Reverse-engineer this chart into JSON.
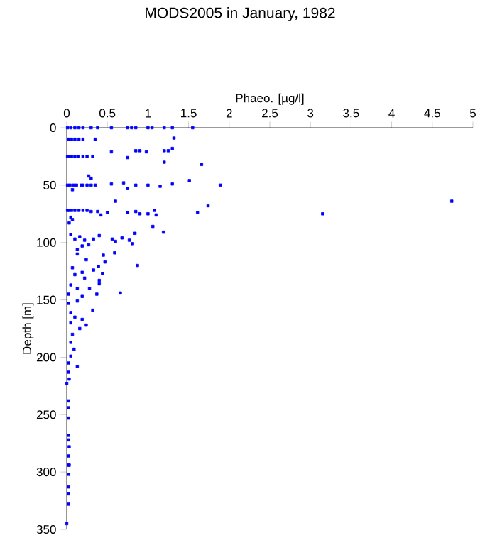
{
  "chart_data": {
    "type": "scatter",
    "title": "MODS2005 in January, 1982",
    "xlabel": "Phaeo. [µg/l]",
    "ylabel": "Depth [m]",
    "xlim": [
      0,
      5
    ],
    "xticks": [
      0,
      0.5,
      1,
      1.5,
      2,
      2.5,
      3,
      3.5,
      4,
      4.5,
      5
    ],
    "ylim": [
      350,
      0
    ],
    "yticks": [
      0,
      50,
      100,
      150,
      200,
      250,
      300,
      350
    ],
    "marker": "square",
    "series": [
      {
        "color": "#0000ff",
        "x": [
          0.01,
          0.05,
          0.1,
          0.15,
          0.2,
          0.3,
          0.38,
          0.55,
          0.75,
          0.8,
          0.85,
          1.0,
          1.05,
          1.2,
          1.3,
          1.55,
          0.02,
          0.06,
          0.1,
          0.15,
          0.2,
          0.35,
          1.32,
          0.55,
          0.85,
          0.9,
          0.98,
          1.2,
          1.25,
          1.3,
          0.01,
          0.03,
          0.06,
          0.1,
          0.14,
          0.2,
          0.25,
          0.32,
          0.75,
          1.2,
          1.66,
          0.27,
          0.3,
          0.01,
          0.04,
          0.08,
          0.12,
          0.18,
          0.2,
          0.25,
          0.3,
          0.35,
          0.55,
          0.7,
          0.75,
          0.85,
          1.0,
          1.15,
          1.3,
          1.51,
          1.89,
          0.07,
          0.6,
          4.74,
          0.01,
          0.03,
          0.06,
          0.1,
          0.15,
          0.2,
          0.25,
          0.3,
          0.38,
          0.42,
          0.5,
          0.75,
          0.85,
          0.9,
          1.0,
          1.08,
          1.1,
          1.61,
          1.74,
          3.15,
          0.05,
          0.03,
          0.07,
          0.4,
          0.56,
          0.84,
          1.06,
          1.19,
          0.6,
          0.68,
          0.77,
          0.81,
          0.05,
          0.1,
          0.16,
          0.22,
          0.27,
          0.33,
          0.13,
          0.19,
          0.13,
          0.24,
          0.39,
          0.47,
          0.45,
          0.59,
          0.87,
          0.07,
          0.1,
          0.19,
          0.33,
          0.44,
          0.22,
          0.4,
          0.4,
          0.05,
          0.13,
          0.28,
          0.66,
          0.37,
          0.02,
          0.19,
          0.02,
          0.13,
          0.32,
          0.05,
          0.1,
          0.19,
          0.24,
          0.16,
          0.05,
          0.07,
          0.05,
          0.09,
          0.05,
          0.13,
          0.02,
          0.02,
          0.03,
          0.0,
          0.02,
          0.02,
          0.02,
          0.02,
          0.02,
          0.03,
          0.02,
          0.02,
          0.03,
          0.02,
          0.02,
          0.02,
          0.02,
          0.0
        ],
        "values": [
          0,
          0,
          0,
          0,
          0,
          0,
          0,
          0,
          0,
          0,
          0,
          0,
          0,
          0,
          0,
          0,
          10,
          10,
          10,
          10,
          10,
          10,
          9,
          21,
          20,
          20,
          21,
          20,
          20,
          18,
          25,
          25,
          25,
          25,
          25,
          25,
          25,
          25,
          26,
          30,
          32,
          42,
          44,
          50,
          50,
          50,
          50,
          50,
          50,
          50,
          50,
          50,
          49,
          48,
          53,
          50,
          50,
          51,
          49,
          46,
          50,
          54,
          64,
          64,
          72,
          72,
          72,
          72,
          72,
          72,
          72,
          73,
          73,
          76,
          74,
          74,
          73,
          75,
          75,
          72,
          76,
          74,
          68,
          75,
          78,
          83,
          80,
          94,
          97,
          92,
          86,
          91,
          99,
          96,
          98,
          101,
          93,
          97,
          95,
          98,
          102,
          97,
          106,
          103,
          110,
          115,
          121,
          117,
          111,
          109,
          120,
          122,
          128,
          126,
          124,
          127,
          131,
          133,
          136,
          137,
          140,
          140,
          144,
          145,
          145,
          147,
          153,
          151,
          159,
          161,
          165,
          167,
          172,
          175,
          170,
          180,
          187,
          193,
          199,
          208,
          205,
          213,
          219,
          223,
          238,
          244,
          253,
          268,
          272,
          278,
          286,
          294,
          294,
          302,
          313,
          319,
          328,
          345
        ]
      }
    ]
  }
}
